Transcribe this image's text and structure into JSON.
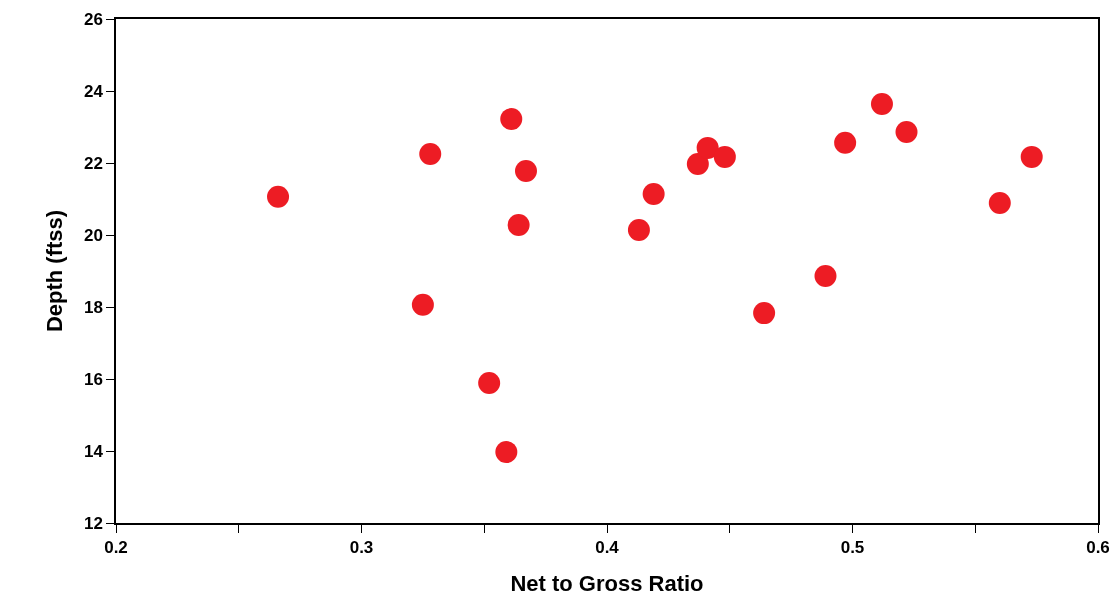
{
  "chart_data": {
    "type": "scatter",
    "xlabel": "Net to Gross Ratio",
    "ylabel": "Depth (ftss)",
    "x": [
      0.266,
      0.328,
      0.325,
      0.352,
      0.359,
      0.361,
      0.364,
      0.367,
      0.413,
      0.419,
      0.437,
      0.441,
      0.448,
      0.464,
      0.489,
      0.497,
      0.512,
      0.522,
      0.56,
      0.573
    ],
    "series": [
      {
        "color": "#ed1c24",
        "values": [
          21.06,
          22.25,
          18.06,
          15.89,
          13.97,
          23.22,
          20.28,
          21.78,
          20.14,
          21.14,
          21.97,
          22.42,
          22.17,
          17.83,
          18.86,
          22.56,
          23.64,
          22.86,
          20.89,
          22.17
        ]
      }
    ],
    "xlim": [
      0.2,
      0.6
    ],
    "xticks": [
      0.2,
      {
        "value": 0.25,
        "label": null
      },
      0.3,
      {
        "value": 0.35,
        "label": null
      },
      0.4,
      {
        "value": 0.45,
        "label": null
      },
      0.5,
      {
        "value": 0.55,
        "label": null
      },
      0.6
    ],
    "ylim": [
      12,
      26
    ],
    "yticks": [
      12,
      14,
      16,
      18,
      20,
      22,
      24,
      26
    ],
    "marker": "circle"
  }
}
